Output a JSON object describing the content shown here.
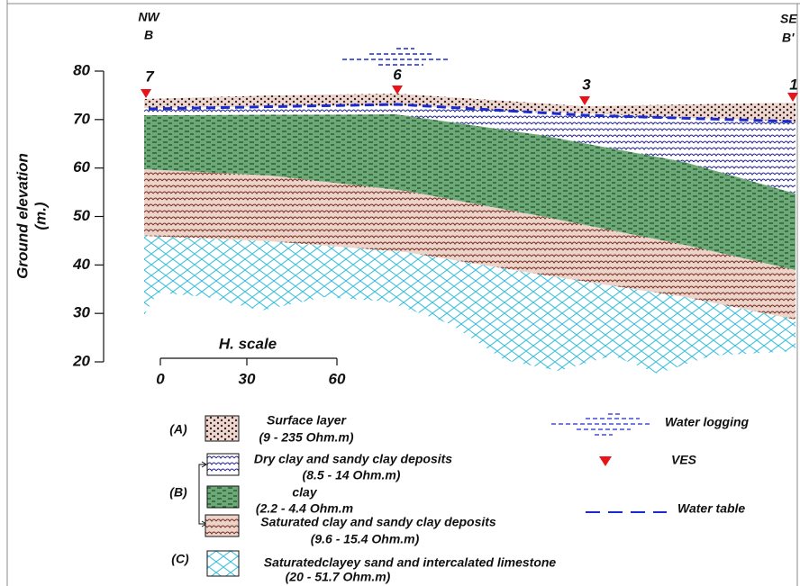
{
  "profile": {
    "left": {
      "direction": "NW",
      "point": "B"
    },
    "right": {
      "direction": "SE",
      "point": "B'"
    }
  },
  "axis": {
    "title": "Ground elevation",
    "unit": "(m.)",
    "ticks": [
      80,
      70,
      60,
      50,
      40,
      30,
      20
    ]
  },
  "ves_points": [
    "7",
    "6",
    "3",
    "1"
  ],
  "h_scale": {
    "title": "H. scale",
    "ticks": [
      0,
      30,
      60
    ]
  },
  "legend": {
    "groups": [
      "(A)",
      "(B)",
      "(C)"
    ],
    "items": [
      {
        "label": "Surface layer",
        "range": "(9 - 235 Ohm.m)"
      },
      {
        "label": "Dry clay and sandy clay deposits",
        "range": "(8.5 - 14 Ohm.m)"
      },
      {
        "label": "clay",
        "range": "(2.2 - 4.4 Ohm.m"
      },
      {
        "label": "Saturated clay and sandy clay deposits",
        "range": "(9.6 - 15.4 Ohm.m)"
      },
      {
        "label": "Saturatedclayey sand and  intercalated limestone",
        "range": "(20 - 51.7 Ohm.m)"
      }
    ],
    "symbols": [
      "Water logging",
      "VES",
      "Water table"
    ]
  }
}
